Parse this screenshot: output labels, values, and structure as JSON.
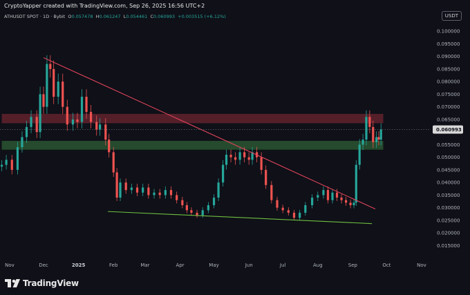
{
  "header": {
    "credit": "CryptoYapper created with TradingView.com, Sep 26, 2025 16:56 UTC+2",
    "symbol": "ATHUSDT SPOT · 1D · Bybit",
    "ohlc": {
      "o_label": "O",
      "o": "0.057478",
      "h_label": "H",
      "h": "0.061247",
      "l_label": "L",
      "l": "0.054461",
      "c_label": "C",
      "c": "0.060993",
      "change": "+0.003515 (+6.12%)"
    },
    "currency_button": "USDT"
  },
  "branding": {
    "logo_text": "TradingView"
  },
  "chart_data": {
    "type": "candlestick",
    "last_price_label": "0.060993",
    "y_axis": {
      "ylim": [
        0.011,
        0.1025
      ],
      "ticks": [
        "0.100000",
        "0.095000",
        "0.090000",
        "0.085000",
        "0.080000",
        "0.075000",
        "0.070000",
        "0.065000",
        "0.055000",
        "0.050000",
        "0.045000",
        "0.040000",
        "0.035000",
        "0.030000",
        "0.025000",
        "0.020000",
        "0.015000"
      ]
    },
    "x_axis": {
      "labels": [
        {
          "text": "Nov",
          "date": "2024-11-01"
        },
        {
          "text": "Dec",
          "date": "2024-12-01"
        },
        {
          "text": "2025",
          "date": "2025-01-01",
          "bold": true
        },
        {
          "text": "Feb",
          "date": "2025-02-01"
        },
        {
          "text": "Mar",
          "date": "2025-03-01"
        },
        {
          "text": "Apr",
          "date": "2025-04-01"
        },
        {
          "text": "May",
          "date": "2025-05-01"
        },
        {
          "text": "Jun",
          "date": "2025-06-01"
        },
        {
          "text": "Jul",
          "date": "2025-07-01"
        },
        {
          "text": "Aug",
          "date": "2025-08-01"
        },
        {
          "text": "Sep",
          "date": "2025-09-01"
        },
        {
          "text": "Oct",
          "date": "2025-10-01"
        },
        {
          "text": "Nov",
          "date": "2025-11-01"
        }
      ]
    },
    "colors": {
      "up": "#26a69a",
      "down": "#ef5350",
      "background": "#0f1018",
      "resistance_zone": "#6d2430",
      "support_zone": "#2d5e34",
      "trendline_down": "#e0445a",
      "trendline_support": "#6fbf40"
    },
    "series": [
      {
        "name": "ATHUSDT close",
        "points": [
          [
            "2024-10-25",
            0.047
          ],
          [
            "2024-10-29",
            0.049
          ],
          [
            "2024-11-03",
            0.045
          ],
          [
            "2024-11-08",
            0.054
          ],
          [
            "2024-11-12",
            0.058
          ],
          [
            "2024-11-16",
            0.062
          ],
          [
            "2024-11-20",
            0.066
          ],
          [
            "2024-11-25",
            0.06
          ],
          [
            "2024-11-28",
            0.075
          ],
          [
            "2024-12-01",
            0.07
          ],
          [
            "2024-12-04",
            0.087
          ],
          [
            "2024-12-07",
            0.085
          ],
          [
            "2024-12-10",
            0.074
          ],
          [
            "2024-12-14",
            0.08
          ],
          [
            "2024-12-18",
            0.07
          ],
          [
            "2024-12-22",
            0.063
          ],
          [
            "2024-12-27",
            0.065
          ],
          [
            "2024-12-31",
            0.064
          ],
          [
            "2025-01-04",
            0.074
          ],
          [
            "2025-01-08",
            0.068
          ],
          [
            "2025-01-12",
            0.064
          ],
          [
            "2025-01-17",
            0.061
          ],
          [
            "2025-01-20",
            0.063
          ],
          [
            "2025-01-25",
            0.057
          ],
          [
            "2025-01-28",
            0.052
          ],
          [
            "2025-02-01",
            0.044
          ],
          [
            "2025-02-04",
            0.034
          ],
          [
            "2025-02-07",
            0.04
          ],
          [
            "2025-02-12",
            0.037
          ],
          [
            "2025-02-17",
            0.038
          ],
          [
            "2025-02-22",
            0.036
          ],
          [
            "2025-02-27",
            0.038
          ],
          [
            "2025-03-04",
            0.035
          ],
          [
            "2025-03-09",
            0.036
          ],
          [
            "2025-03-14",
            0.035
          ],
          [
            "2025-03-19",
            0.037
          ],
          [
            "2025-03-24",
            0.035
          ],
          [
            "2025-03-29",
            0.033
          ],
          [
            "2025-04-03",
            0.031
          ],
          [
            "2025-04-07",
            0.029
          ],
          [
            "2025-04-11",
            0.028
          ],
          [
            "2025-04-16",
            0.027
          ],
          [
            "2025-04-21",
            0.029
          ],
          [
            "2025-04-26",
            0.031
          ],
          [
            "2025-05-01",
            0.034
          ],
          [
            "2025-05-05",
            0.04
          ],
          [
            "2025-05-09",
            0.047
          ],
          [
            "2025-05-12",
            0.051
          ],
          [
            "2025-05-16",
            0.05
          ],
          [
            "2025-05-20",
            0.049
          ],
          [
            "2025-05-24",
            0.052
          ],
          [
            "2025-05-28",
            0.05
          ],
          [
            "2025-06-01",
            0.049
          ],
          [
            "2025-06-04",
            0.052
          ],
          [
            "2025-06-08",
            0.05
          ],
          [
            "2025-06-12",
            0.045
          ],
          [
            "2025-06-16",
            0.039
          ],
          [
            "2025-06-21",
            0.033
          ],
          [
            "2025-06-26",
            0.03
          ],
          [
            "2025-07-01",
            0.029
          ],
          [
            "2025-07-06",
            0.028
          ],
          [
            "2025-07-11",
            0.026
          ],
          [
            "2025-07-16",
            0.028
          ],
          [
            "2025-07-21",
            0.031
          ],
          [
            "2025-07-27",
            0.034
          ],
          [
            "2025-08-01",
            0.035
          ],
          [
            "2025-08-06",
            0.037
          ],
          [
            "2025-08-10",
            0.033
          ],
          [
            "2025-08-14",
            0.036
          ],
          [
            "2025-08-18",
            0.034
          ],
          [
            "2025-08-22",
            0.033
          ],
          [
            "2025-08-26",
            0.032
          ],
          [
            "2025-08-30",
            0.031
          ],
          [
            "2025-09-02",
            0.032
          ],
          [
            "2025-09-04",
            0.047
          ],
          [
            "2025-09-07",
            0.055
          ],
          [
            "2025-09-10",
            0.057
          ],
          [
            "2025-09-13",
            0.066
          ],
          [
            "2025-09-16",
            0.062
          ],
          [
            "2025-09-19",
            0.056
          ],
          [
            "2025-09-22",
            0.058
          ],
          [
            "2025-09-24",
            0.057
          ],
          [
            "2025-09-26",
            0.060993
          ]
        ]
      }
    ],
    "zones": [
      {
        "role": "resistance",
        "low": 0.0635,
        "high": 0.0672,
        "from": "2024-10-25",
        "to": "2025-09-28"
      },
      {
        "role": "support",
        "low": 0.053,
        "high": 0.0565,
        "from": "2024-10-25",
        "to": "2025-09-28"
      }
    ],
    "trendlines": [
      {
        "role": "descending",
        "from": [
          "2024-12-01",
          0.0895
        ],
        "to": [
          "2025-09-21",
          0.0295
        ]
      },
      {
        "role": "rising-support",
        "from": [
          "2025-01-27",
          0.0285
        ],
        "to": [
          "2025-09-18",
          0.0237
        ]
      }
    ],
    "grid": false,
    "legend": "none"
  }
}
